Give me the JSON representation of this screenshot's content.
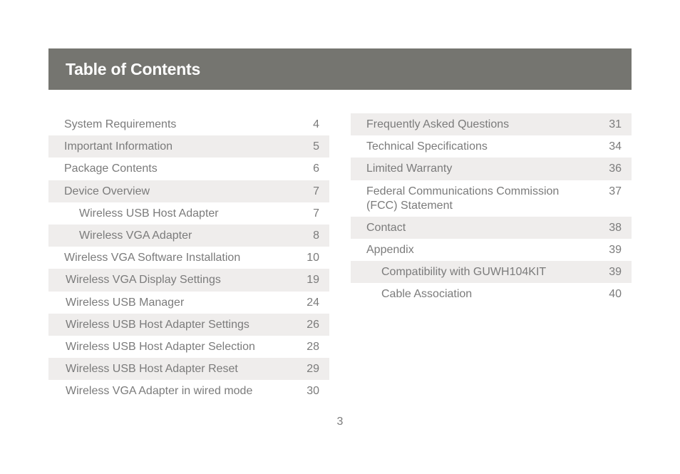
{
  "header": {
    "title": "Table of Contents"
  },
  "toc": {
    "left": [
      {
        "label": "System Requirements",
        "page": "4",
        "shade": false,
        "level": 0
      },
      {
        "label": "Important Information",
        "page": "5",
        "shade": true,
        "level": 0
      },
      {
        "label": "Package Contents",
        "page": "6",
        "shade": false,
        "level": 0
      },
      {
        "label": "Device Overview",
        "page": "7",
        "shade": true,
        "level": 0
      },
      {
        "label": "Wireless USB Host Adapter",
        "page": "7",
        "shade": false,
        "level": 1
      },
      {
        "label": "Wireless VGA Adapter",
        "page": "8",
        "shade": true,
        "level": 1
      },
      {
        "label": "Wireless VGA Software Installation",
        "page": "10",
        "shade": false,
        "level": 0
      },
      {
        "label": "Wireless VGA Display Settings",
        "page": "19",
        "shade": true,
        "level": 0,
        "nudge": true
      },
      {
        "label": "Wireless USB Manager",
        "page": "24",
        "shade": false,
        "level": 0,
        "nudge": true
      },
      {
        "label": "Wireless USB Host Adapter Settings",
        "page": "26",
        "shade": true,
        "level": 0,
        "nudge": true
      },
      {
        "label": "Wireless USB Host Adapter Selection",
        "page": "28",
        "shade": false,
        "level": 0,
        "nudge": true
      },
      {
        "label": "Wireless USB Host Adapter Reset",
        "page": "29",
        "shade": true,
        "level": 0,
        "nudge": true
      },
      {
        "label": "Wireless VGA Adapter in wired mode",
        "page": "30",
        "shade": false,
        "level": 0,
        "nudge": true
      }
    ],
    "right": [
      {
        "label": "Frequently Asked Questions",
        "page": "31",
        "shade": true,
        "level": 0
      },
      {
        "label": "Technical Specifications",
        "page": "34",
        "shade": false,
        "level": 0
      },
      {
        "label": "Limited Warranty",
        "page": "36",
        "shade": true,
        "level": 0
      },
      {
        "label": "Federal Communications Commission (FCC) Statement",
        "page": "37",
        "shade": false,
        "level": 0
      },
      {
        "label": "Contact",
        "page": "38",
        "shade": true,
        "level": 0
      },
      {
        "label": "Appendix",
        "page": "39",
        "shade": false,
        "level": 0
      },
      {
        "label": "Compatibility with GUWH104KIT",
        "page": "39",
        "shade": true,
        "level": 1
      },
      {
        "label": "Cable Association",
        "page": "40",
        "shade": false,
        "level": 1
      }
    ]
  },
  "footer": {
    "page_number": "3"
  }
}
